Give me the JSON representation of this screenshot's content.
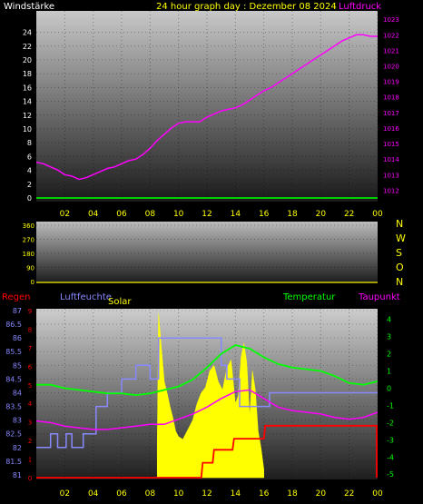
{
  "colors": {
    "background": "#000000",
    "wind_label": "#ffffff",
    "title": "#ffff00",
    "pressure": "#ff00ff",
    "wind": "#00cc00",
    "rain": "#ff0000",
    "humidity": "#8888ff",
    "solar": "#ffff00",
    "temperature": "#00ff00",
    "dewpoint": "#ff00ff",
    "tick_text": "#ffff00",
    "compass": "#ffff00"
  },
  "chart_data": [
    {
      "type": "line",
      "title": "24 hour graph day : Dezember 08 2024",
      "left_axis_label": "Windstärke",
      "right_axis_label": "Luftdruck",
      "x_ticks": [
        "02",
        "04",
        "06",
        "08",
        "10",
        "12",
        "14",
        "16",
        "18",
        "20",
        "22",
        "00"
      ],
      "x_range": [
        0,
        24
      ],
      "left_ticks": [
        0,
        2,
        4,
        6,
        8,
        10,
        12,
        14,
        16,
        18,
        20,
        22,
        24
      ],
      "left_range": [
        0,
        25
      ],
      "right_ticks": [
        1012,
        1013,
        1014,
        1015,
        1016,
        1017,
        1018,
        1019,
        1020,
        1021,
        1022,
        1023
      ],
      "right_range": [
        1011.5,
        1023.3
      ],
      "series": [
        {
          "name": "Luftdruck",
          "axis": "right",
          "x": [
            0,
            0.5,
            1,
            1.5,
            2,
            2.5,
            3,
            3.5,
            4,
            4.5,
            5,
            5.5,
            6,
            6.5,
            7,
            7.5,
            8,
            8.5,
            9,
            9.5,
            10,
            10.5,
            11,
            11.5,
            12,
            12.5,
            13,
            13.5,
            14,
            14.5,
            15,
            15.5,
            16,
            16.5,
            17,
            17.5,
            18,
            18.5,
            19,
            19.5,
            20,
            20.5,
            21,
            21.5,
            22,
            22.5,
            23,
            23.5,
            24
          ],
          "y": [
            1013.8,
            1013.7,
            1013.5,
            1013.3,
            1013.0,
            1012.9,
            1012.7,
            1012.8,
            1013.0,
            1013.2,
            1013.4,
            1013.5,
            1013.7,
            1013.9,
            1014.0,
            1014.3,
            1014.7,
            1015.2,
            1015.6,
            1016.0,
            1016.3,
            1016.4,
            1016.4,
            1016.4,
            1016.7,
            1016.9,
            1017.1,
            1017.2,
            1017.3,
            1017.5,
            1017.8,
            1018.1,
            1018.4,
            1018.6,
            1018.9,
            1019.2,
            1019.5,
            1019.8,
            1020.1,
            1020.4,
            1020.7,
            1021.0,
            1021.3,
            1021.6,
            1021.8,
            1022.0,
            1022.0,
            1021.9,
            1021.9
          ]
        },
        {
          "name": "Windstärke",
          "axis": "left",
          "x": [
            0,
            24
          ],
          "y": [
            0,
            0
          ]
        }
      ]
    },
    {
      "type": "scatter",
      "title": "",
      "left_ticks": [
        0,
        90,
        180,
        270,
        360
      ],
      "left_range": [
        0,
        360
      ],
      "compass_labels": [
        "N",
        "W",
        "S",
        "O",
        "N"
      ],
      "series": [
        {
          "name": "",
          "x": [],
          "y": []
        }
      ]
    },
    {
      "type": "line",
      "title": "",
      "legend": [
        "Regen",
        "Luftfeuchte",
        "Solar",
        "Temperatur",
        "Taupunkt"
      ],
      "x_ticks": [
        "02",
        "04",
        "06",
        "08",
        "10",
        "12",
        "14",
        "16",
        "18",
        "20",
        "22",
        "00"
      ],
      "x_range": [
        0,
        24
      ],
      "left_ticks": [
        81,
        81.5,
        82,
        82.5,
        83,
        83.5,
        84,
        84.5,
        85,
        85.5,
        86,
        86.5,
        87
      ],
      "left_range": [
        80.9,
        87
      ],
      "rain_ticks": [
        0,
        1,
        2,
        3,
        4,
        5,
        6,
        7,
        8,
        9
      ],
      "rain_range": [
        0,
        9
      ],
      "right_ticks": [
        -5,
        -4,
        -3,
        -2,
        -1,
        0,
        1,
        2,
        3,
        4
      ],
      "right_range": [
        -5.2,
        4.3
      ],
      "series": [
        {
          "name": "Regen",
          "axis": "rain",
          "x": [
            0,
            11.6,
            11.7,
            12.4,
            12.5,
            13.8,
            13.9,
            16.0,
            16.1,
            24.0
          ],
          "y": [
            0,
            0,
            0.8,
            0.8,
            1.5,
            1.5,
            2.1,
            2.1,
            2.8,
            2.8
          ]
        },
        {
          "name": "Luftfeuchte",
          "axis": "left",
          "x": [
            0,
            1.0,
            1.0,
            1.5,
            1.5,
            2.1,
            2.1,
            2.5,
            2.5,
            3.3,
            3.3,
            4.2,
            4.2,
            5.0,
            5.0,
            6.0,
            6.0,
            7.0,
            7.0,
            8.0,
            8.0,
            8.6,
            8.6,
            13.0,
            13.0,
            13.4,
            13.4,
            14.3,
            14.3,
            16.4,
            16.4,
            19.0,
            19.0,
            24.0
          ],
          "y": [
            82.0,
            82.0,
            82.5,
            82.5,
            82.0,
            82.0,
            82.5,
            82.5,
            82.0,
            82.0,
            82.5,
            82.5,
            83.5,
            83.5,
            84.0,
            84.0,
            84.5,
            84.5,
            85.0,
            85.0,
            84.5,
            84.5,
            86.0,
            86.0,
            85.0,
            85.0,
            84.5,
            84.5,
            83.5,
            83.5,
            84.0,
            84.0,
            84.0,
            84.0
          ]
        },
        {
          "name": "Temperatur",
          "axis": "right",
          "x": [
            0,
            1,
            2,
            3,
            4,
            5,
            6,
            7,
            8,
            9,
            10,
            11,
            12,
            13,
            14,
            15,
            16,
            17,
            18,
            19,
            20,
            21,
            22,
            23,
            24
          ],
          "y": [
            0.2,
            0.2,
            0.0,
            -0.1,
            -0.2,
            -0.3,
            -0.3,
            -0.4,
            -0.3,
            -0.1,
            0.1,
            0.5,
            1.2,
            2.0,
            2.5,
            2.3,
            1.8,
            1.4,
            1.2,
            1.1,
            1.0,
            0.7,
            0.3,
            0.2,
            0.4
          ]
        },
        {
          "name": "Taupunkt",
          "axis": "right",
          "x": [
            0,
            1,
            2,
            3,
            4,
            5,
            6,
            7,
            8,
            9,
            10,
            11,
            12,
            13,
            14,
            15,
            16,
            17,
            18,
            19,
            20,
            21,
            22,
            23,
            24
          ],
          "y": [
            -1.9,
            -2.0,
            -2.2,
            -2.3,
            -2.4,
            -2.4,
            -2.3,
            -2.2,
            -2.1,
            -2.1,
            -1.8,
            -1.5,
            -1.1,
            -0.6,
            -0.2,
            -0.1,
            -0.6,
            -1.1,
            -1.3,
            -1.4,
            -1.5,
            -1.7,
            -1.8,
            -1.7,
            -1.4
          ]
        },
        {
          "name": "Solar",
          "axis": "left",
          "x": [
            8.5,
            8.6,
            8.8,
            9.0,
            9.2,
            9.4,
            9.6,
            9.8,
            10.0,
            10.3,
            10.6,
            11.0,
            11.3,
            11.6,
            11.9,
            12.2,
            12.5,
            12.8,
            13.1,
            13.4,
            13.7,
            14.0,
            14.2,
            14.4,
            14.6,
            14.8,
            15.0,
            15.2,
            15.4,
            15.6,
            15.8,
            16.0
          ],
          "y": [
            82.0,
            86.9,
            85.6,
            84.4,
            84.0,
            83.5,
            83.1,
            82.6,
            82.4,
            82.3,
            82.6,
            83.0,
            83.6,
            84.0,
            84.2,
            84.8,
            85.0,
            84.4,
            84.1,
            84.9,
            85.2,
            83.6,
            83.9,
            85.3,
            85.8,
            85.1,
            83.1,
            84.8,
            84.1,
            82.6,
            82.0,
            81.2
          ]
        }
      ]
    }
  ]
}
